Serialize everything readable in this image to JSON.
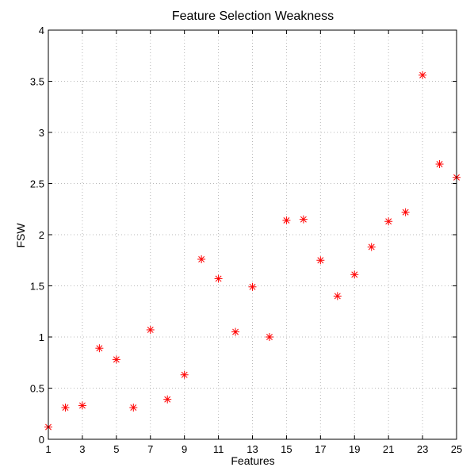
{
  "chart_data": {
    "type": "scatter",
    "title": "Feature Selection Weakness",
    "xlabel": "Features",
    "ylabel": "FSW",
    "xlim": [
      1,
      25
    ],
    "ylim": [
      0,
      4
    ],
    "xticks": [
      1,
      3,
      5,
      7,
      9,
      11,
      13,
      15,
      17,
      19,
      21,
      23,
      25
    ],
    "yticks": [
      0,
      0.5,
      1,
      1.5,
      2,
      2.5,
      3,
      3.5,
      4
    ],
    "grid": true,
    "marker": "asterisk",
    "color": "#ff0000",
    "series": [
      {
        "x": [
          1,
          2,
          3,
          4,
          5,
          6,
          7,
          8,
          9,
          10,
          11,
          12,
          13,
          14,
          15,
          16,
          17,
          18,
          19,
          20,
          21,
          22,
          23,
          24,
          25
        ],
        "y": [
          0.12,
          0.31,
          0.33,
          0.89,
          0.78,
          0.31,
          1.07,
          0.39,
          0.63,
          1.76,
          1.57,
          1.05,
          1.49,
          1.0,
          2.14,
          2.15,
          1.75,
          1.4,
          1.61,
          1.88,
          2.13,
          2.22,
          3.56,
          2.69,
          2.56
        ]
      }
    ]
  }
}
